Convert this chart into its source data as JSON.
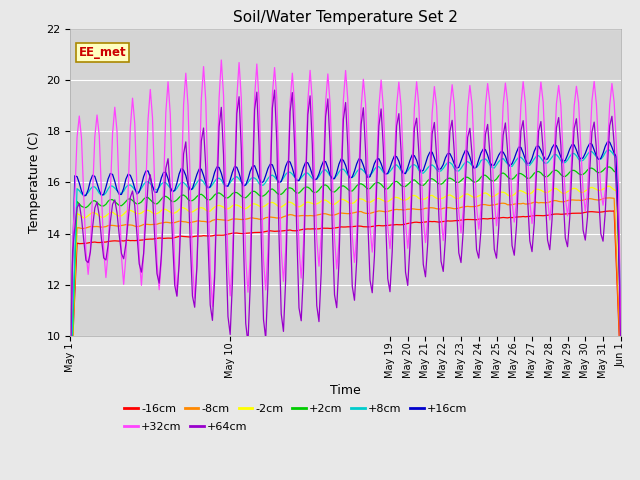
{
  "title": "Soil/Water Temperature Set 2",
  "xlabel": "Time",
  "ylabel": "Temperature (C)",
  "ylim": [
    10,
    22
  ],
  "yticks": [
    10,
    12,
    14,
    16,
    18,
    20,
    22
  ],
  "annotation": "EE_met",
  "series_labels": [
    "-16cm",
    "-8cm",
    "-2cm",
    "+2cm",
    "+8cm",
    "+16cm",
    "+32cm",
    "+64cm"
  ],
  "series_colors": [
    "#ff0000",
    "#ff8800",
    "#ffff00",
    "#00cc00",
    "#00cccc",
    "#0000cc",
    "#ff44ff",
    "#9900cc"
  ],
  "background_color": "#e8e8e8",
  "plot_bg_color": "#d4d4d4",
  "tick_labels": [
    "May 1",
    "May 10",
    "May 19",
    "May 20",
    "May 21",
    "May 22",
    "May 23",
    "May 24",
    "May 25",
    "May 26",
    "May 27",
    "May 28",
    "May 29",
    "May 30",
    "May 31",
    "Jun 1"
  ],
  "tick_days": [
    0,
    9,
    18,
    19,
    20,
    21,
    22,
    23,
    24,
    25,
    26,
    27,
    28,
    29,
    30,
    31
  ]
}
